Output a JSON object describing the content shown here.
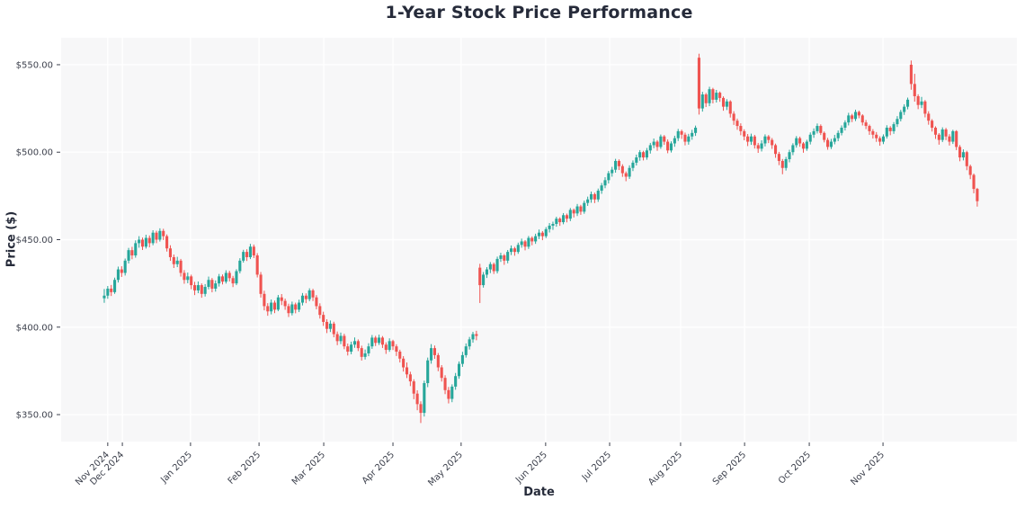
{
  "chart_data": {
    "type": "candlestick",
    "title": "1-Year Stock Price Performance",
    "xlabel": "Date",
    "ylabel": "Price ($)",
    "legend": "none",
    "grid": true,
    "up_color": "#26a69a",
    "down_color": "#ef5350",
    "plot_bg": "#f7f7f8",
    "grid_color": "#ffffff",
    "text_color": "#3d414d",
    "title_color": "#262b3a",
    "figure_bg": "#ffffff",
    "ylim": [
      335,
      565
    ],
    "y_ticks": [
      {
        "value": 350,
        "label": "$350.00"
      },
      {
        "value": 400,
        "label": "$400.00"
      },
      {
        "value": 450,
        "label": "$450.00"
      },
      {
        "value": 500,
        "label": "$500.00"
      },
      {
        "value": 550,
        "label": "$550.00"
      }
    ],
    "x_ticks": [
      {
        "label": "Nov 2024",
        "d": 1
      },
      {
        "label": "Dec 2024",
        "d": 5.2
      },
      {
        "label": "Jan 2025",
        "d": 24.8
      },
      {
        "label": "Feb 2025",
        "d": 44.5
      },
      {
        "label": "Mar 2025",
        "d": 63.1
      },
      {
        "label": "Apr 2025",
        "d": 83
      },
      {
        "label": "May 2025",
        "d": 102.6
      },
      {
        "label": "Jun 2025",
        "d": 126.9
      },
      {
        "label": "Jul 2025",
        "d": 145.3
      },
      {
        "label": "Aug 2025",
        "d": 165.7
      },
      {
        "label": "Sep 2025",
        "d": 184.1
      },
      {
        "label": "Oct 2025",
        "d": 202.7
      },
      {
        "label": "Nov 2025",
        "d": 223.9
      }
    ],
    "candles": [
      [
        416.5,
        421.8,
        413.9,
        418
      ],
      [
        418,
        423.5,
        416.2,
        422
      ],
      [
        422,
        424.1,
        417.8,
        420
      ],
      [
        420,
        428.3,
        419,
        427
      ],
      [
        427,
        434.6,
        425.5,
        433
      ],
      [
        433,
        434.8,
        428.7,
        431
      ],
      [
        431,
        439.2,
        429.5,
        438
      ],
      [
        438,
        445.3,
        436.4,
        444
      ],
      [
        444,
        445.9,
        438.8,
        441
      ],
      [
        441,
        449.6,
        439.7,
        448
      ],
      [
        448,
        452,
        445.4,
        450
      ],
      [
        450,
        451.2,
        444.1,
        446
      ],
      [
        446,
        452.8,
        444.9,
        451
      ],
      [
        451,
        452.4,
        445.6,
        448
      ],
      [
        448,
        455.4,
        446.8,
        454
      ],
      [
        454,
        455.1,
        448,
        450
      ],
      [
        450,
        456.5,
        448.9,
        455
      ],
      [
        455,
        456.2,
        449.8,
        452
      ],
      [
        452,
        453,
        443.2,
        445
      ],
      [
        445,
        446.8,
        437.9,
        440
      ],
      [
        440,
        441.5,
        433.8,
        436
      ],
      [
        436,
        440.2,
        434.3,
        438
      ],
      [
        438,
        439,
        428.9,
        431
      ],
      [
        431,
        432.6,
        424.8,
        427
      ],
      [
        427,
        431.2,
        425.1,
        429
      ],
      [
        429,
        430,
        421.7,
        424
      ],
      [
        424,
        425.9,
        418.3,
        421
      ],
      [
        421,
        426.1,
        419.4,
        424
      ],
      [
        424,
        425,
        416.8,
        419
      ],
      [
        419,
        424.6,
        417.5,
        423
      ],
      [
        423,
        428.9,
        421.6,
        427
      ],
      [
        427,
        428.1,
        419.9,
        422
      ],
      [
        422,
        426.7,
        420.3,
        425
      ],
      [
        425,
        430.4,
        423.2,
        429
      ],
      [
        429,
        430.1,
        424.4,
        426
      ],
      [
        426,
        432.5,
        424.9,
        431
      ],
      [
        431,
        432.2,
        426.1,
        428
      ],
      [
        428,
        429.3,
        422.9,
        425
      ],
      [
        425,
        433.1,
        424,
        432
      ],
      [
        432,
        439.4,
        430.7,
        438
      ],
      [
        438,
        444.2,
        436.9,
        443
      ],
      [
        443,
        444.5,
        437.8,
        440
      ],
      [
        440,
        447.6,
        438.9,
        446
      ],
      [
        446,
        447.2,
        439.5,
        441
      ],
      [
        441,
        442.3,
        428.4,
        430
      ],
      [
        430,
        431.5,
        416.9,
        419
      ],
      [
        419,
        420.8,
        409.6,
        412
      ],
      [
        412,
        413.7,
        406.5,
        409
      ],
      [
        409,
        415.8,
        407.3,
        414
      ],
      [
        414,
        415.2,
        408,
        410
      ],
      [
        410,
        418.4,
        409.1,
        417
      ],
      [
        417,
        418.9,
        412.6,
        415
      ],
      [
        415,
        416.3,
        409.9,
        412
      ],
      [
        412,
        413.4,
        405.8,
        408
      ],
      [
        408,
        414.6,
        406.7,
        413
      ],
      [
        413,
        414,
        407.9,
        410
      ],
      [
        410,
        415.7,
        408.6,
        414
      ],
      [
        414,
        419.5,
        412.4,
        418
      ],
      [
        418,
        419.3,
        413.7,
        416
      ],
      [
        416,
        422.2,
        414.8,
        421
      ],
      [
        421,
        421.9,
        414.9,
        417
      ],
      [
        417,
        418.3,
        410.2,
        412
      ],
      [
        412,
        413.6,
        404.9,
        407
      ],
      [
        407,
        408.8,
        400.7,
        403
      ],
      [
        403,
        404.5,
        396.6,
        399
      ],
      [
        399,
        403.8,
        397.2,
        402
      ],
      [
        402,
        403.1,
        394.2,
        396
      ],
      [
        396,
        397.5,
        389.7,
        392
      ],
      [
        392,
        396.9,
        390.3,
        395
      ],
      [
        395,
        396.2,
        387.4,
        389
      ],
      [
        389,
        390.6,
        383.8,
        386
      ],
      [
        386,
        391.7,
        384.5,
        390
      ],
      [
        390,
        394.1,
        388.2,
        392
      ],
      [
        392,
        393,
        386.3,
        388
      ],
      [
        388,
        389.4,
        380.9,
        383
      ],
      [
        383,
        387.2,
        381.5,
        385
      ],
      [
        385,
        390.8,
        383.4,
        389
      ],
      [
        389,
        395.5,
        387.6,
        394
      ],
      [
        394,
        395,
        389.2,
        391
      ],
      [
        391,
        395.7,
        389.8,
        394
      ],
      [
        394,
        394.9,
        388.1,
        390
      ],
      [
        390,
        391.3,
        384.7,
        387
      ],
      [
        387,
        393.6,
        385.9,
        392
      ],
      [
        392,
        392.8,
        386.9,
        389
      ],
      [
        389,
        390.2,
        383.5,
        386
      ],
      [
        386,
        387.1,
        379.8,
        382
      ],
      [
        382,
        383.4,
        374.6,
        377
      ],
      [
        377,
        379.8,
        370.9,
        373
      ],
      [
        373,
        374.5,
        366.3,
        369
      ],
      [
        369,
        370.2,
        358.8,
        362
      ],
      [
        362,
        363.9,
        352.5,
        356
      ],
      [
        356,
        357.6,
        345.2,
        351
      ],
      [
        351,
        369.4,
        348.9,
        368
      ],
      [
        368,
        382.6,
        365.7,
        381
      ],
      [
        381,
        390.3,
        379.1,
        388
      ],
      [
        388,
        389.5,
        381.9,
        384
      ],
      [
        384,
        385.2,
        374.8,
        377
      ],
      [
        377,
        378.3,
        368.9,
        371
      ],
      [
        371,
        372.5,
        361.7,
        364
      ],
      [
        364,
        365.8,
        356.4,
        359
      ],
      [
        359,
        367.3,
        357.1,
        366
      ],
      [
        366,
        373.8,
        364.2,
        372
      ],
      [
        372,
        380.4,
        370.5,
        379
      ],
      [
        379,
        385.9,
        377.3,
        384
      ],
      [
        384,
        390.7,
        382.6,
        389
      ],
      [
        389,
        394.4,
        387.2,
        393
      ],
      [
        393,
        397.3,
        391.1,
        396
      ],
      [
        396,
        397.9,
        392.5,
        395
      ],
      [
        434,
        436.2,
        413.8,
        424
      ],
      [
        424,
        431.5,
        422.6,
        430
      ],
      [
        430,
        434.3,
        428.1,
        433
      ],
      [
        433,
        437.2,
        430.9,
        436
      ],
      [
        436,
        436.9,
        430.4,
        432
      ],
      [
        432,
        440.3,
        430.7,
        439
      ],
      [
        439,
        442.5,
        437.3,
        441
      ],
      [
        441,
        441.8,
        435.6,
        438
      ],
      [
        438,
        444.1,
        436.5,
        443
      ],
      [
        443,
        446.7,
        441.2,
        445
      ],
      [
        445,
        445.9,
        440.8,
        443
      ],
      [
        443,
        448.3,
        441.9,
        447
      ],
      [
        447,
        450.6,
        445.4,
        449
      ],
      [
        449,
        449.8,
        443.9,
        446
      ],
      [
        446,
        452.1,
        444.7,
        451
      ],
      [
        451,
        451.9,
        446.8,
        449
      ],
      [
        449,
        453.4,
        447.6,
        452
      ],
      [
        452,
        455.8,
        450.3,
        454
      ],
      [
        454,
        454.9,
        449.7,
        452
      ],
      [
        452,
        457.2,
        450.9,
        456
      ],
      [
        456,
        459.5,
        454.1,
        458
      ],
      [
        458,
        460.3,
        455.6,
        459
      ],
      [
        459,
        463.1,
        457.4,
        462
      ],
      [
        462,
        462.8,
        457.9,
        460
      ],
      [
        460,
        465.2,
        458.8,
        464
      ],
      [
        464,
        464.9,
        459.9,
        462
      ],
      [
        462,
        468.1,
        460.6,
        467
      ],
      [
        467,
        467.8,
        462.7,
        465
      ],
      [
        465,
        470.4,
        463.5,
        469
      ],
      [
        469,
        469.9,
        464.2,
        466
      ],
      [
        466,
        472.3,
        464.8,
        471
      ],
      [
        471,
        474.6,
        469.3,
        473
      ],
      [
        473,
        477.5,
        471.1,
        476
      ],
      [
        476,
        476.9,
        470.9,
        473
      ],
      [
        473,
        479.2,
        471.6,
        478
      ],
      [
        478,
        482.4,
        476.2,
        481
      ],
      [
        481,
        485.7,
        479.4,
        484
      ],
      [
        484,
        489.3,
        482.1,
        488
      ],
      [
        488,
        491.6,
        486,
        490
      ],
      [
        490,
        496.2,
        488.3,
        495
      ],
      [
        495,
        495.9,
        489.8,
        492
      ],
      [
        492,
        493.1,
        485.9,
        488
      ],
      [
        488,
        489,
        483.4,
        486
      ],
      [
        486,
        492.5,
        484.7,
        491
      ],
      [
        491,
        495.3,
        489.2,
        494
      ],
      [
        494,
        498.6,
        492.4,
        497
      ],
      [
        497,
        501.2,
        495.1,
        500
      ],
      [
        500,
        500.8,
        495.3,
        497
      ],
      [
        497,
        502.4,
        495.7,
        501
      ],
      [
        501,
        505.3,
        499.2,
        504
      ],
      [
        504,
        507.8,
        502.3,
        506
      ],
      [
        506,
        506.9,
        500.8,
        503
      ],
      [
        503,
        510.1,
        501.9,
        509
      ],
      [
        509,
        509.8,
        504.2,
        506
      ],
      [
        506,
        507.3,
        499.4,
        501
      ],
      [
        501,
        506.2,
        499.8,
        505
      ],
      [
        505,
        509.4,
        503.1,
        508
      ],
      [
        508,
        513.3,
        506.4,
        512
      ],
      [
        512,
        512.9,
        507.6,
        510
      ],
      [
        510,
        511.2,
        503.9,
        506
      ],
      [
        506,
        510.5,
        504.3,
        509
      ],
      [
        509,
        512.8,
        507.1,
        511
      ],
      [
        511,
        515.2,
        509.3,
        514
      ],
      [
        554,
        556.3,
        521.5,
        525
      ],
      [
        525,
        534.5,
        523.2,
        533
      ],
      [
        533,
        533.9,
        525.8,
        528
      ],
      [
        528,
        537.4,
        526.3,
        536
      ],
      [
        536,
        536.8,
        527.9,
        530
      ],
      [
        530,
        535.6,
        528.4,
        534
      ],
      [
        534,
        534.7,
        528.8,
        531
      ],
      [
        531,
        531.9,
        523.7,
        526
      ],
      [
        526,
        530.3,
        524.1,
        529
      ],
      [
        529,
        529.7,
        519.8,
        522
      ],
      [
        522,
        523.4,
        515.6,
        518
      ],
      [
        518,
        519.2,
        512.8,
        515
      ],
      [
        515,
        516.5,
        509.7,
        512
      ],
      [
        512,
        513.1,
        506.8,
        509
      ],
      [
        509,
        510.4,
        503.5,
        506
      ],
      [
        506,
        510.6,
        504.2,
        509
      ],
      [
        509,
        509.9,
        502.1,
        504
      ],
      [
        504,
        505.3,
        499.6,
        502
      ],
      [
        502,
        506.8,
        500.4,
        505
      ],
      [
        505,
        510.2,
        503.3,
        509
      ],
      [
        509,
        509.8,
        505.2,
        507
      ],
      [
        507,
        508.1,
        501.9,
        504
      ],
      [
        504,
        504.9,
        496.8,
        499
      ],
      [
        499,
        500.2,
        492.6,
        495
      ],
      [
        495,
        496.1,
        487.4,
        491
      ],
      [
        491,
        497.3,
        489.5,
        496
      ],
      [
        496,
        501.4,
        494.2,
        500
      ],
      [
        500,
        505.1,
        498.3,
        504
      ],
      [
        504,
        509.2,
        502.6,
        508
      ],
      [
        508,
        508.9,
        503.1,
        505
      ],
      [
        505,
        505.8,
        499.7,
        502
      ],
      [
        502,
        507.1,
        500.8,
        506
      ],
      [
        506,
        511.3,
        504.4,
        510
      ],
      [
        510,
        513.6,
        508.2,
        512
      ],
      [
        512,
        516.4,
        510.7,
        515
      ],
      [
        515,
        515.9,
        509.8,
        511
      ],
      [
        511,
        511.8,
        505.6,
        507
      ],
      [
        507,
        508.2,
        501.4,
        503
      ],
      [
        503,
        507.6,
        501.8,
        506
      ],
      [
        506,
        509.9,
        504.5,
        508
      ],
      [
        508,
        512.4,
        506.3,
        511
      ],
      [
        511,
        515.3,
        509.6,
        514
      ],
      [
        514,
        518.2,
        512.4,
        517
      ],
      [
        517,
        522.5,
        515.3,
        521
      ],
      [
        521,
        521.9,
        517.2,
        519
      ],
      [
        519,
        524.3,
        517.8,
        523
      ],
      [
        523,
        523.8,
        519.4,
        521
      ],
      [
        521,
        521.7,
        515.3,
        517
      ],
      [
        517,
        518.4,
        513.2,
        515
      ],
      [
        515,
        515.8,
        509.9,
        512
      ],
      [
        512,
        513.2,
        507.8,
        510
      ],
      [
        510,
        511.5,
        505.9,
        508
      ],
      [
        508,
        509.1,
        503.7,
        506
      ],
      [
        506,
        510.2,
        504.6,
        509
      ],
      [
        509,
        515.4,
        507.8,
        514
      ],
      [
        514,
        514.9,
        509.7,
        512
      ],
      [
        512,
        517.2,
        510.5,
        516
      ],
      [
        516,
        520.6,
        514.4,
        519
      ],
      [
        519,
        524.2,
        517.6,
        523
      ],
      [
        523,
        527.4,
        521.3,
        526
      ],
      [
        526,
        531.2,
        524.5,
        530
      ],
      [
        550,
        552.4,
        535.7,
        539
      ],
      [
        539,
        544.8,
        528.9,
        532
      ],
      [
        532,
        533.1,
        524.6,
        527
      ],
      [
        527,
        531.6,
        525.2,
        529
      ],
      [
        529,
        529.8,
        519.9,
        522
      ],
      [
        522,
        523.4,
        515.7,
        518
      ],
      [
        518,
        518.9,
        511.8,
        514
      ],
      [
        514,
        514.8,
        507.6,
        510
      ],
      [
        510,
        510.9,
        504.3,
        507
      ],
      [
        507,
        514.2,
        505.8,
        513
      ],
      [
        513,
        513.9,
        506.9,
        509
      ],
      [
        509,
        510.3,
        503.8,
        506
      ],
      [
        506,
        512.8,
        504.7,
        512
      ],
      [
        512,
        512.6,
        501.2,
        503
      ],
      [
        503,
        504.1,
        494.8,
        497
      ],
      [
        497,
        501.6,
        495.3,
        500
      ],
      [
        500,
        500.8,
        489.7,
        492
      ],
      [
        492,
        492.9,
        484.6,
        487
      ],
      [
        487,
        487.8,
        476.5,
        479
      ],
      [
        479,
        479.6,
        468.9,
        472
      ]
    ]
  }
}
